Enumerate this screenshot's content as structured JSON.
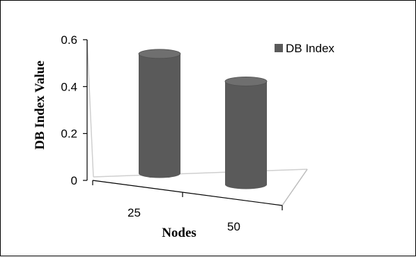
{
  "chart_data": {
    "type": "bar",
    "style": "3d-cylinder",
    "categories": [
      "25",
      "50"
    ],
    "series": [
      {
        "name": "DB Index",
        "values": [
          0.51,
          0.44
        ]
      }
    ],
    "xlabel": "Nodes",
    "ylabel": "DB Index Value",
    "ylim": [
      0,
      0.6
    ],
    "yticks": [
      0,
      0.2,
      0.4,
      0.6
    ],
    "ytick_labels": [
      "0",
      "0.2",
      "0.4",
      "0.6"
    ],
    "grid": false,
    "legend": "top-right"
  },
  "colors": {
    "bar_body": "#5a5a5a",
    "bar_top": "#6f6f6f",
    "axis": "#000000",
    "wall_line": "#cfcfcf"
  }
}
